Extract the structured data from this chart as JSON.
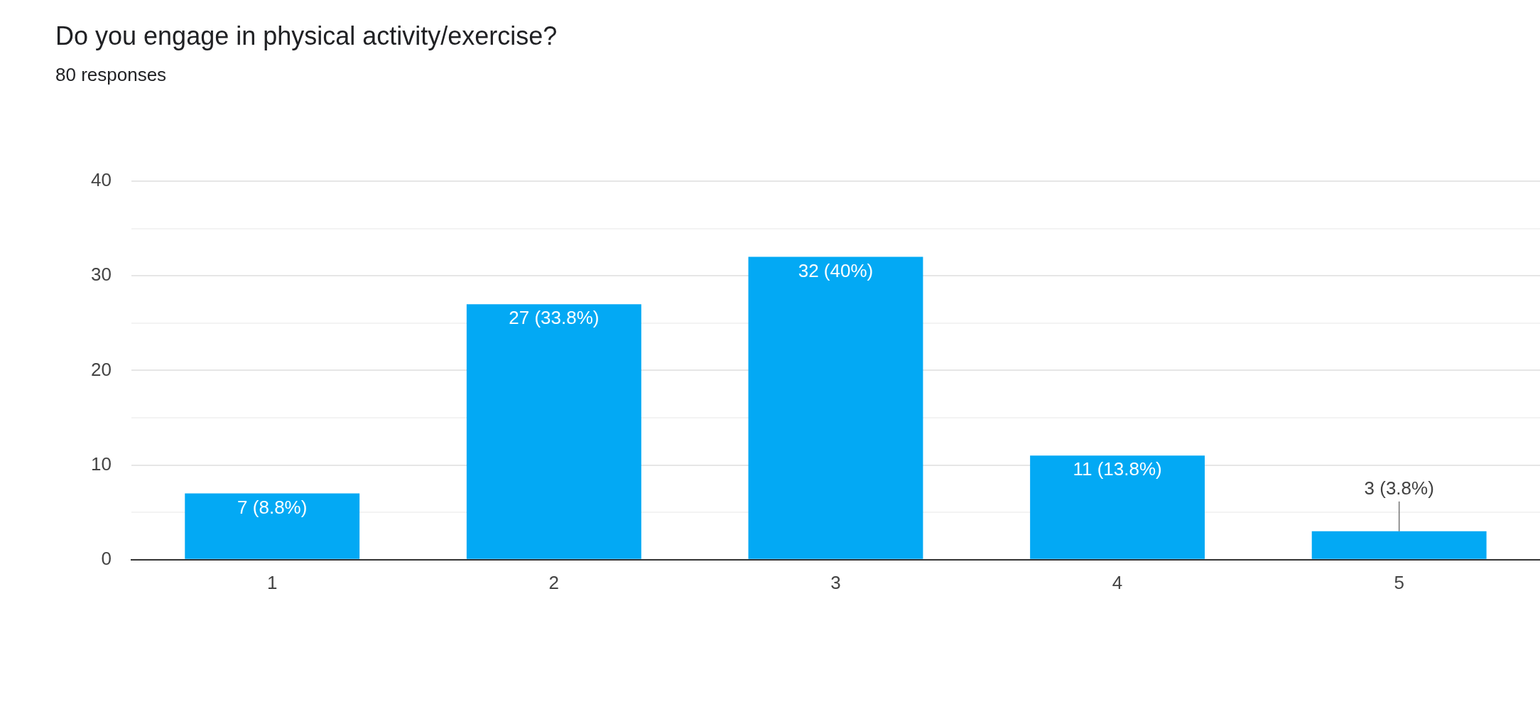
{
  "chart_data": {
    "type": "bar",
    "title": "Do you engage in physical activity/exercise?",
    "subtitle": "80 responses",
    "categories": [
      "1",
      "2",
      "3",
      "4",
      "5"
    ],
    "values": [
      7,
      27,
      32,
      11,
      3
    ],
    "value_labels": [
      "7 (8.8%)",
      "27 (33.8%)",
      "32 (40%)",
      "11 (13.8%)",
      "3 (3.8%)"
    ],
    "color": "#03a9f4",
    "ylim": [
      0,
      40
    ],
    "yticks": [
      0,
      {
        "value": 5,
        "label": null
      },
      10,
      {
        "value": 15,
        "label": null
      },
      20,
      {
        "value": 25,
        "label": null
      },
      30,
      {
        "value": 35,
        "label": null
      },
      40
    ],
    "grid": "y",
    "legend": false
  }
}
